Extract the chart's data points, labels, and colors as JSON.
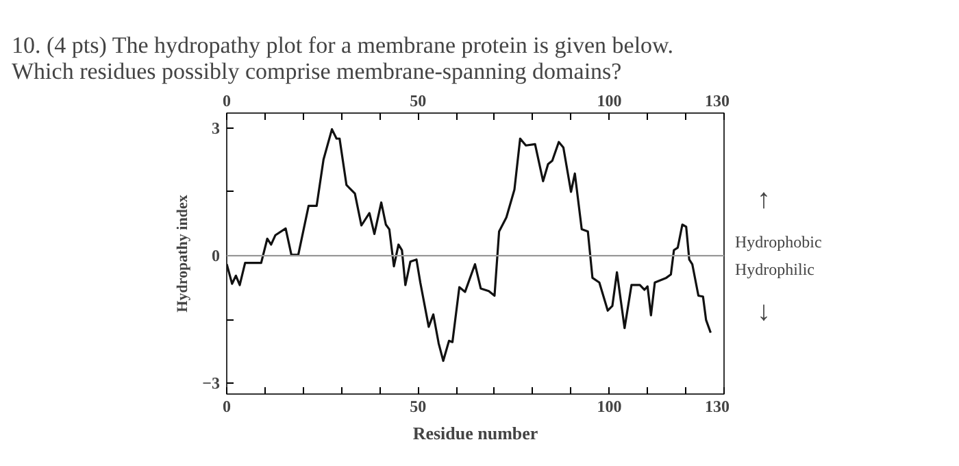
{
  "chart_data": {
    "type": "line",
    "title": "10. (4 pts) The hydropathy plot for a membrane protein is given below. Which residues possibly comprise membrane-spanning domains?",
    "xlabel": "Residue number",
    "ylabel": "Hydropathy index",
    "x": [
      0,
      1.4,
      2.4,
      3.4,
      4.8,
      9.0,
      10.6,
      11.6,
      12.7,
      15.4,
      16.9,
      18.7,
      21.4,
      23.5,
      25.3,
      27.5,
      28.7,
      29.5,
      31.3,
      33.5,
      35.2,
      37.3,
      38.6,
      40.4,
      41.6,
      42.5,
      43.7,
      44.9,
      45.8,
      46.7,
      48.0,
      49.6,
      50.6,
      52.8,
      54.0,
      55.4,
      56.6,
      58.1,
      59.0,
      60.8,
      62.3,
      64.9,
      66.4,
      68.5,
      70.0,
      71.2,
      73.1,
      75.2,
      76.7,
      78.2,
      80.6,
      82.7,
      84.0,
      85.1,
      86.8,
      88.0,
      90.0,
      91.0,
      92.8,
      94.4,
      95.6,
      97.4,
      99.6,
      100.8,
      102.0,
      104.0,
      105.8,
      108.0,
      109.2,
      110.0,
      110.9,
      111.9,
      114.9,
      116.1,
      116.9,
      117.9,
      119.1,
      120.1,
      120.9,
      121.7,
      123.3,
      124.5,
      125.3,
      126.5
    ],
    "series": [
      {
        "color": "#111111",
        "values": [
          -0.2,
          -0.66,
          -0.47,
          -0.69,
          -0.17,
          -0.17,
          0.4,
          0.26,
          0.48,
          0.64,
          0.02,
          0.02,
          1.17,
          1.17,
          2.26,
          2.97,
          2.75,
          2.75,
          1.66,
          1.46,
          0.71,
          1.0,
          0.51,
          1.25,
          0.73,
          0.62,
          -0.25,
          0.26,
          0.13,
          -0.69,
          -0.14,
          -0.09,
          -0.63,
          -1.67,
          -1.38,
          -2.06,
          -2.47,
          -2.0,
          -2.03,
          -0.74,
          -0.85,
          -0.2,
          -0.77,
          -0.83,
          -0.94,
          0.57,
          0.9,
          1.55,
          2.75,
          2.59,
          2.62,
          1.75,
          2.15,
          2.23,
          2.67,
          2.54,
          1.5,
          1.93,
          0.62,
          0.57,
          -0.52,
          -0.63,
          -1.29,
          -1.18,
          -0.39,
          -1.7,
          -0.69,
          -0.69,
          -0.8,
          -0.72,
          -1.4,
          -0.63,
          -0.52,
          -0.44,
          0.13,
          0.19,
          0.73,
          0.68,
          -0.09,
          -0.2,
          -0.94,
          -0.96,
          -1.51,
          -1.81
        ]
      }
    ],
    "xlim": [
      0,
      130
    ],
    "ylim": [
      -3.25,
      3.35
    ],
    "xticks": [
      0,
      {
        "value": 10,
        "label": null
      },
      {
        "value": 20,
        "label": null
      },
      {
        "value": 30,
        "label": null
      },
      {
        "value": 40,
        "label": null
      },
      50,
      {
        "value": 60,
        "label": null
      },
      {
        "value": 70,
        "label": null
      },
      {
        "value": 80,
        "label": null
      },
      {
        "value": 90,
        "label": null
      },
      100,
      {
        "value": 110,
        "label": null
      },
      {
        "value": 120,
        "label": null
      },
      130
    ],
    "x2lim": [
      0,
      130
    ],
    "x2ticks": [
      0,
      {
        "value": 10,
        "label": null
      },
      {
        "value": 20,
        "label": null
      },
      {
        "value": 30,
        "label": null
      },
      {
        "value": 40,
        "label": null
      },
      50,
      {
        "value": 60,
        "label": null
      },
      {
        "value": 70,
        "label": null
      },
      {
        "value": 80,
        "label": null
      },
      {
        "value": 90,
        "label": null
      },
      100,
      {
        "value": 110,
        "label": null
      },
      {
        "value": 120,
        "label": null
      },
      130
    ],
    "yticks": [
      {
        "value": -3,
        "label": "−3"
      },
      {
        "value": -1.5,
        "label": null
      },
      0,
      {
        "value": 1.5,
        "label": null
      },
      3
    ],
    "ref_lines": [
      {
        "axis": "y",
        "value": 0,
        "color": "#999999"
      }
    ],
    "annotations": [
      "↑",
      "Hydrophobic",
      "Hydrophilic",
      "↓"
    ],
    "grid": false,
    "marker": "none",
    "line_style": "solid"
  }
}
